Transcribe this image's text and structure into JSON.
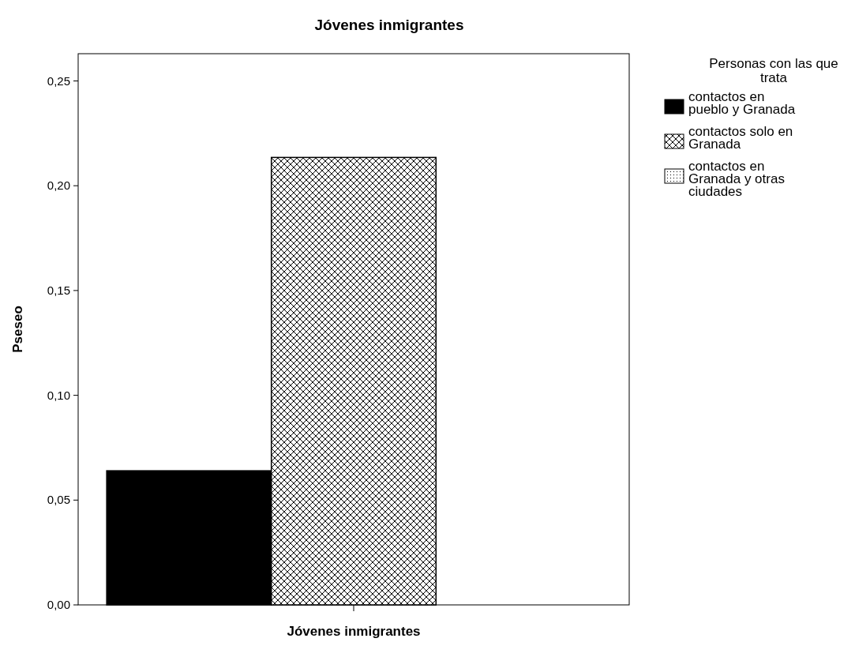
{
  "chart_data": {
    "type": "bar",
    "title": "Jóvenes inmigrantes",
    "xlabel": "Jóvenes inmigrantes",
    "ylabel": "Pseseo",
    "legend_title": "Personas con las que trata",
    "categories": [
      null
    ],
    "series": [
      {
        "name": "contactos en pueblo y Granada",
        "color": "#000000",
        "values": [
          0.064
        ]
      },
      {
        "name": "contactos solo en Granada",
        "color": "#000000",
        "values": [
          0.2135
        ]
      },
      {
        "name": "contactos en Granada y otras ciudades",
        "color": "#000000",
        "values": [
          0
        ]
      }
    ],
    "ylim": [
      0,
      0.263
    ],
    "yticks": [
      {
        "value": 0,
        "label": "0,00"
      },
      {
        "value": 0.05,
        "label": "0,05"
      },
      {
        "value": 0.1,
        "label": "0,10"
      },
      {
        "value": 0.15,
        "label": "0,15"
      },
      {
        "value": 0.2,
        "label": "0,20"
      },
      {
        "value": 0.25,
        "label": "0,25"
      }
    ],
    "grid": false,
    "legend": "top right"
  }
}
